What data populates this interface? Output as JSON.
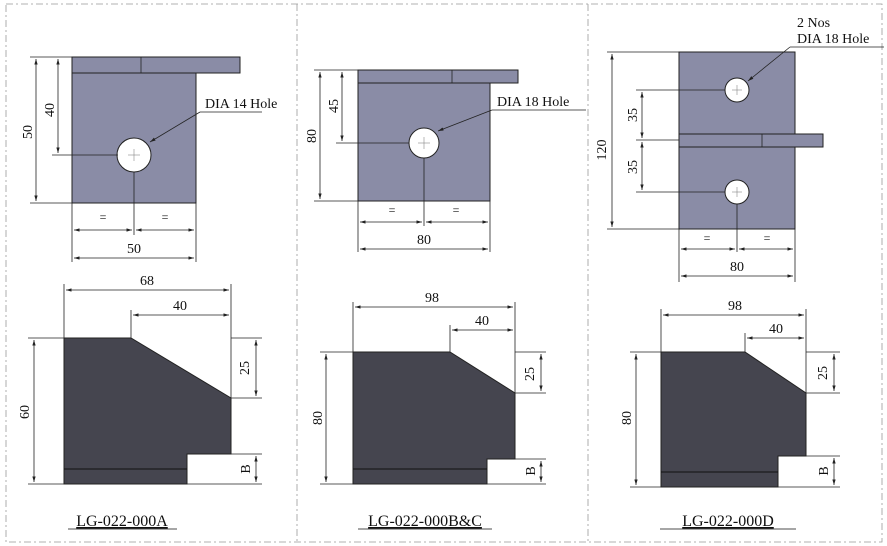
{
  "panels": [
    {
      "part_label": "LG-022-000A",
      "top": {
        "total_height": "50",
        "hole_position": "40",
        "hole_note": "DIA 14 Hole",
        "width": "50",
        "equal": "="
      },
      "side": {
        "length": "68",
        "chamfer_length": "40",
        "chamfer_height": "25",
        "height": "60",
        "step": "B"
      }
    },
    {
      "part_label": "LG-022-000B&C",
      "top": {
        "total_height": "80",
        "hole_position": "45",
        "hole_note": "DIA 18 Hole",
        "width": "80",
        "equal": "="
      },
      "side": {
        "length": "98",
        "chamfer_length": "40",
        "chamfer_height": "25",
        "height": "80",
        "step": "B"
      }
    },
    {
      "part_label": "LG-022-000D",
      "top": {
        "total_height": "120",
        "hole_spacing_1": "35",
        "hole_spacing_2": "35",
        "hole_note_qty": "2 Nos",
        "hole_note": "DIA 18 Hole",
        "width": "80",
        "equal": "="
      },
      "side": {
        "length": "98",
        "chamfer_length": "40",
        "chamfer_height": "25",
        "height": "80",
        "step": "B"
      }
    }
  ],
  "colors": {
    "plate": "#8a8ca6",
    "block": "#45454f"
  }
}
